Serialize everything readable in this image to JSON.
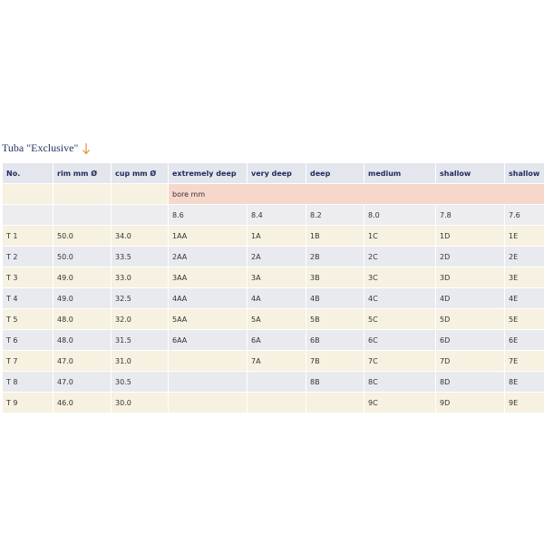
{
  "title": "Tuba \"Exclusive\"",
  "table": {
    "header": [
      "No.",
      "rim mm Ø",
      "cup mm Ø",
      "extremely deep",
      "very deep",
      "deep",
      "medium",
      "shallow",
      "shallow"
    ],
    "bore_label": "bore mm",
    "bore_values": [
      "8.6",
      "8.4",
      "8.2",
      "8.0",
      "7.8",
      "7.6"
    ],
    "rows": [
      [
        "T 1",
        "50.0",
        "34.0",
        "1AA",
        "1A",
        "1B",
        "1C",
        "1D",
        "1E"
      ],
      [
        "T 2",
        "50.0",
        "33.5",
        "2AA",
        "2A",
        "2B",
        "2C",
        "2D",
        "2E"
      ],
      [
        "T 3",
        "49.0",
        "33.0",
        "3AA",
        "3A",
        "3B",
        "3C",
        "3D",
        "3E"
      ],
      [
        "T 4",
        "49.0",
        "32.5",
        "4AA",
        "4A",
        "4B",
        "4C",
        "4D",
        "4E"
      ],
      [
        "T 5",
        "48.0",
        "32.0",
        "5AA",
        "5A",
        "5B",
        "5C",
        "5D",
        "5E"
      ],
      [
        "T 6",
        "48.0",
        "31.5",
        "6AA",
        "6A",
        "6B",
        "6C",
        "6D",
        "6E"
      ],
      [
        "T 7",
        "47.0",
        "31.0",
        null,
        "7A",
        "7B",
        "7C",
        "7D",
        "7E"
      ],
      [
        "T 8",
        "47.0",
        "30.5",
        null,
        null,
        "8B",
        "8C",
        "8D",
        "8E"
      ],
      [
        "T 9",
        "46.0",
        "30.0",
        null,
        null,
        null,
        "9C",
        "9D",
        "9E"
      ]
    ]
  }
}
